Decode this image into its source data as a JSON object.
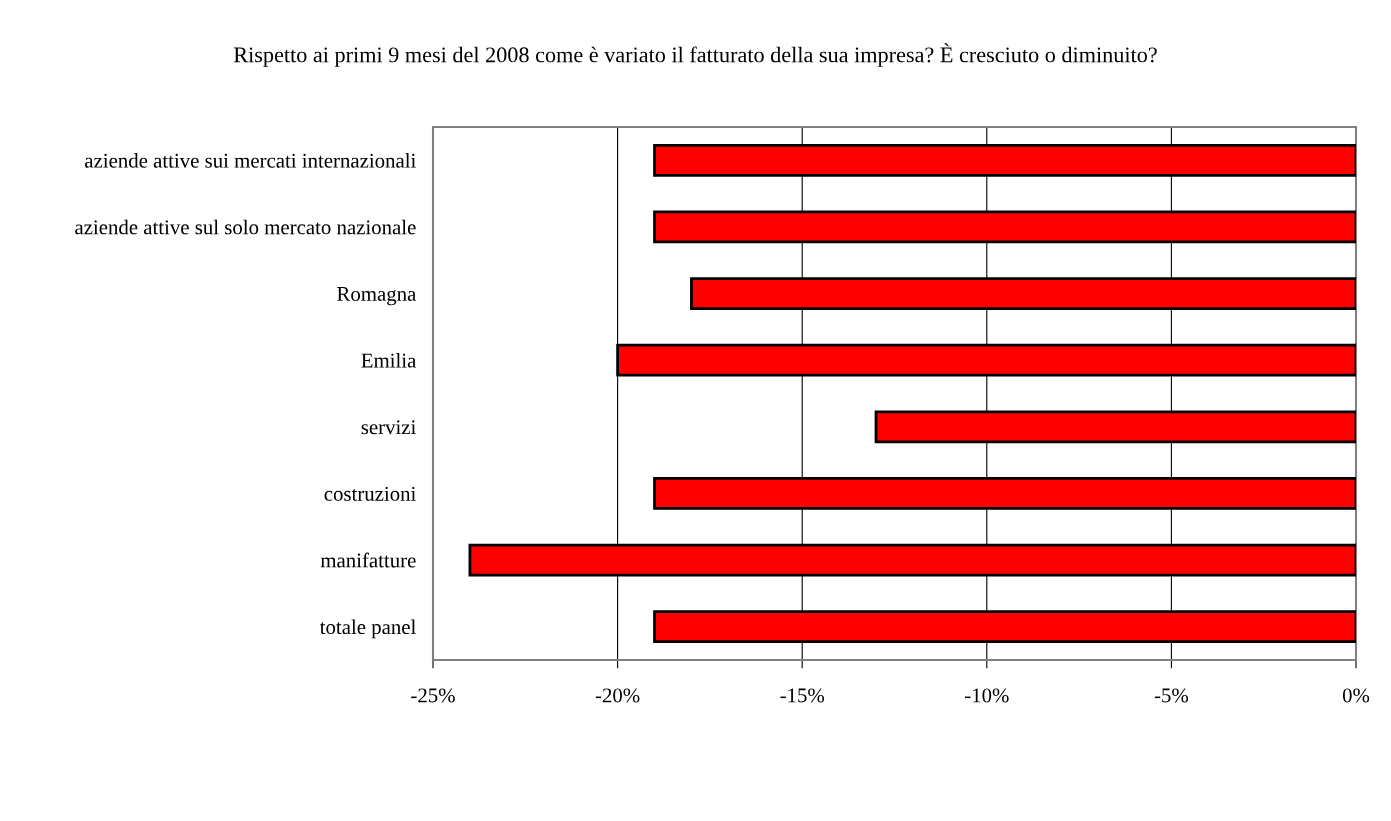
{
  "chart_data": {
    "type": "bar",
    "orientation": "horizontal",
    "title": "Rispetto ai primi 9 mesi del 2008 come è variato il fatturato della sua impresa? È cresciuto o diminuito?",
    "categories": [
      "aziende attive sui mercati internazionali",
      "aziende attive sul solo mercato nazionale",
      "Romagna",
      "Emilia",
      "servizi",
      "costruzioni",
      "manifatture",
      "totale panel"
    ],
    "values": [
      -19,
      -19,
      -18,
      -20,
      -13,
      -19,
      -24,
      -19
    ],
    "color": "#ff0000",
    "xlim": [
      -25,
      0
    ],
    "xticks": [
      {
        "value": -25,
        "label": "-25%"
      },
      {
        "value": -20,
        "label": "-20%"
      },
      {
        "value": -15,
        "label": "-15%"
      },
      {
        "value": -10,
        "label": "-10%"
      },
      {
        "value": -5,
        "label": "-5%"
      },
      {
        "value": 0,
        "label": "0%"
      }
    ],
    "grid": "x"
  }
}
